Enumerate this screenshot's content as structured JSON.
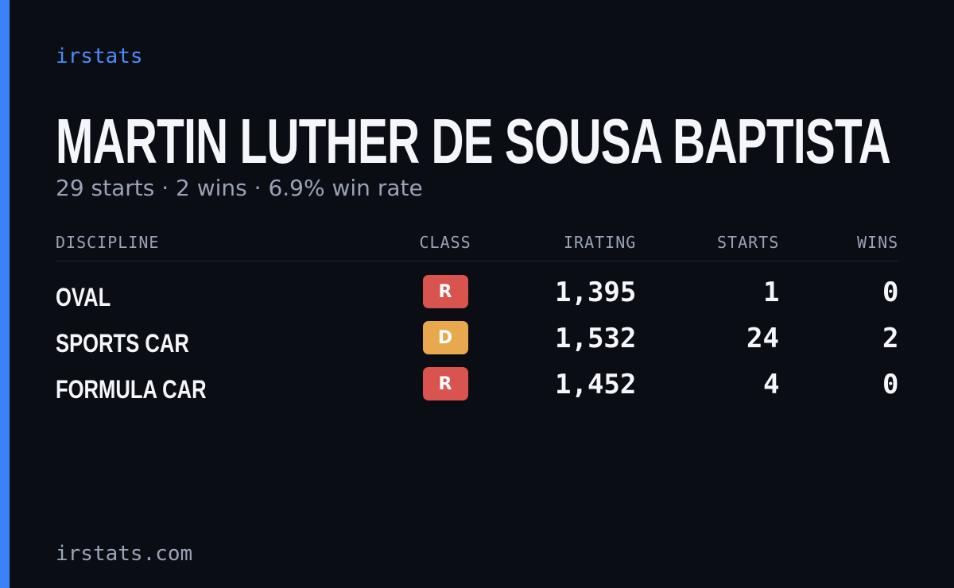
{
  "brand": "irstats",
  "name": "MARTIN LUTHER DE SOUSA BAPTISTA",
  "summary": "29 starts · 2 wins · 6.9% win rate",
  "table": {
    "headers": [
      "DISCIPLINE",
      "CLASS",
      "IRATING",
      "STARTS",
      "WINS"
    ],
    "rows": [
      {
        "discipline": "OVAL",
        "class": "R",
        "class_color": "#d9534f",
        "irating": "1,395",
        "starts": "1",
        "wins": "0"
      },
      {
        "discipline": "SPORTS CAR",
        "class": "D",
        "class_color": "#e8a94e",
        "irating": "1,532",
        "starts": "24",
        "wins": "2"
      },
      {
        "discipline": "FORMULA CAR",
        "class": "R",
        "class_color": "#d9534f",
        "irating": "1,452",
        "starts": "4",
        "wins": "0"
      }
    ]
  },
  "footer": "irstats.com"
}
